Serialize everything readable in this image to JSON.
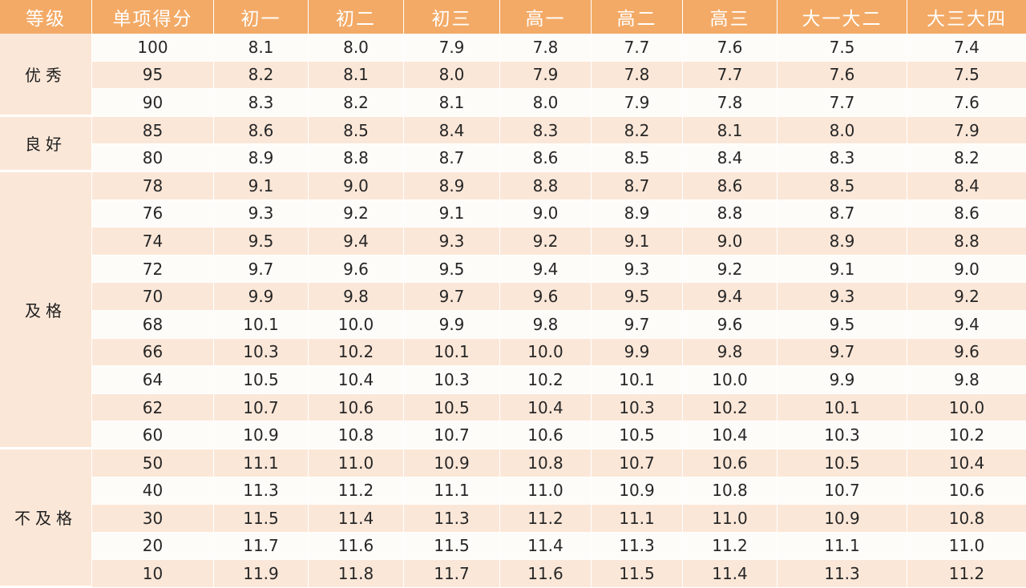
{
  "headers": [
    "等级",
    "单项得分",
    "初一",
    "初二",
    "初三",
    "高一",
    "高二",
    "高三",
    "大一大二",
    "大三大四"
  ],
  "groups": [
    {
      "label": "优秀",
      "rows": [
        {
          "score": "100",
          "values": [
            "8.1",
            "8.0",
            "7.9",
            "7.8",
            "7.7",
            "7.6",
            "7.5",
            "7.4"
          ]
        },
        {
          "score": "95",
          "values": [
            "8.2",
            "8.1",
            "8.0",
            "7.9",
            "7.8",
            "7.7",
            "7.6",
            "7.5"
          ]
        },
        {
          "score": "90",
          "values": [
            "8.3",
            "8.2",
            "8.1",
            "8.0",
            "7.9",
            "7.8",
            "7.7",
            "7.6"
          ]
        }
      ]
    },
    {
      "label": "良好",
      "rows": [
        {
          "score": "85",
          "values": [
            "8.6",
            "8.5",
            "8.4",
            "8.3",
            "8.2",
            "8.1",
            "8.0",
            "7.9"
          ]
        },
        {
          "score": "80",
          "values": [
            "8.9",
            "8.8",
            "8.7",
            "8.6",
            "8.5",
            "8.4",
            "8.3",
            "8.2"
          ]
        }
      ]
    },
    {
      "label": "及格",
      "rows": [
        {
          "score": "78",
          "values": [
            "9.1",
            "9.0",
            "8.9",
            "8.8",
            "8.7",
            "8.6",
            "8.5",
            "8.4"
          ]
        },
        {
          "score": "76",
          "values": [
            "9.3",
            "9.2",
            "9.1",
            "9.0",
            "8.9",
            "8.8",
            "8.7",
            "8.6"
          ]
        },
        {
          "score": "74",
          "values": [
            "9.5",
            "9.4",
            "9.3",
            "9.2",
            "9.1",
            "9.0",
            "8.9",
            "8.8"
          ]
        },
        {
          "score": "72",
          "values": [
            "9.7",
            "9.6",
            "9.5",
            "9.4",
            "9.3",
            "9.2",
            "9.1",
            "9.0"
          ]
        },
        {
          "score": "70",
          "values": [
            "9.9",
            "9.8",
            "9.7",
            "9.6",
            "9.5",
            "9.4",
            "9.3",
            "9.2"
          ]
        },
        {
          "score": "68",
          "values": [
            "10.1",
            "10.0",
            "9.9",
            "9.8",
            "9.7",
            "9.6",
            "9.5",
            "9.4"
          ]
        },
        {
          "score": "66",
          "values": [
            "10.3",
            "10.2",
            "10.1",
            "10.0",
            "9.9",
            "9.8",
            "9.7",
            "9.6"
          ]
        },
        {
          "score": "64",
          "values": [
            "10.5",
            "10.4",
            "10.3",
            "10.2",
            "10.1",
            "10.0",
            "9.9",
            "9.8"
          ]
        },
        {
          "score": "62",
          "values": [
            "10.7",
            "10.6",
            "10.5",
            "10.4",
            "10.3",
            "10.2",
            "10.1",
            "10.0"
          ]
        },
        {
          "score": "60",
          "values": [
            "10.9",
            "10.8",
            "10.7",
            "10.6",
            "10.5",
            "10.4",
            "10.3",
            "10.2"
          ]
        }
      ]
    },
    {
      "label": "不及格",
      "rows": [
        {
          "score": "50",
          "values": [
            "11.1",
            "11.0",
            "10.9",
            "10.8",
            "10.7",
            "10.6",
            "10.5",
            "10.4"
          ]
        },
        {
          "score": "40",
          "values": [
            "11.3",
            "11.2",
            "11.1",
            "11.0",
            "10.9",
            "10.8",
            "10.7",
            "10.6"
          ]
        },
        {
          "score": "30",
          "values": [
            "11.5",
            "11.4",
            "11.3",
            "11.2",
            "11.1",
            "11.0",
            "10.9",
            "10.8"
          ]
        },
        {
          "score": "20",
          "values": [
            "11.7",
            "11.6",
            "11.5",
            "11.4",
            "11.3",
            "11.2",
            "11.1",
            "11.0"
          ]
        },
        {
          "score": "10",
          "values": [
            "11.9",
            "11.8",
            "11.7",
            "11.6",
            "11.5",
            "11.4",
            "11.3",
            "11.2"
          ]
        }
      ]
    }
  ],
  "colors": {
    "header_bg": "#f3aa66",
    "header_text": "#ffffff",
    "row_light": "#fefcf8",
    "row_shaded": "#fbe7d8",
    "grade_bg": "#fbe7d8",
    "text": "#262626"
  }
}
